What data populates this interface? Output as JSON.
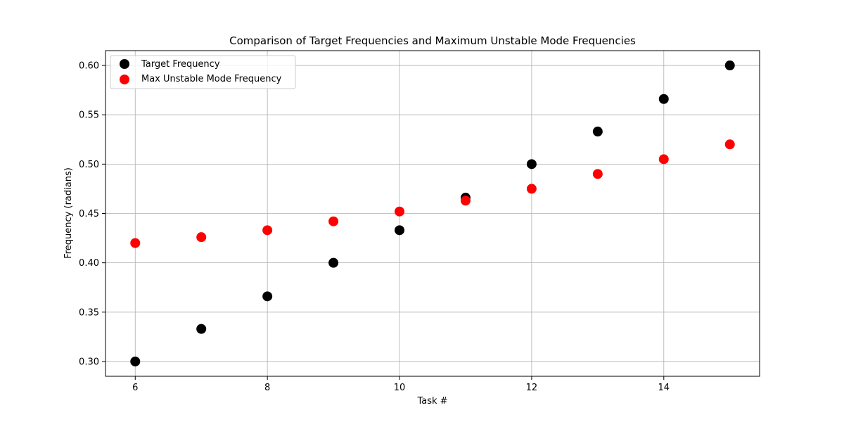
{
  "chart_data": {
    "type": "scatter",
    "title": "Comparison of Target Frequencies and Maximum Unstable Mode Frequencies",
    "xlabel": "Task #",
    "ylabel": "Frequency (radians)",
    "xlim": [
      5.55,
      15.45
    ],
    "ylim": [
      0.285,
      0.615
    ],
    "xticks": [
      6,
      8,
      10,
      12,
      14
    ],
    "xtick_labels": [
      "6",
      "8",
      "10",
      "12",
      "14"
    ],
    "yticks": [
      0.3,
      0.35,
      0.4,
      0.45,
      0.5,
      0.55,
      0.6
    ],
    "ytick_labels": [
      "0.30",
      "0.35",
      "0.40",
      "0.45",
      "0.50",
      "0.55",
      "0.60"
    ],
    "grid": true,
    "legend_position": "top-left",
    "x": [
      6,
      7,
      8,
      9,
      10,
      11,
      12,
      13,
      14,
      15
    ],
    "series": [
      {
        "name": "Target Frequency",
        "color": "#000000",
        "values": [
          0.3,
          0.333,
          0.366,
          0.4,
          0.433,
          0.466,
          0.5,
          0.533,
          0.566,
          0.6
        ]
      },
      {
        "name": "Max Unstable Mode Frequency",
        "color": "#ff0000",
        "values": [
          0.42,
          0.426,
          0.433,
          0.442,
          0.452,
          0.463,
          0.475,
          0.49,
          0.505,
          0.52
        ]
      }
    ]
  }
}
